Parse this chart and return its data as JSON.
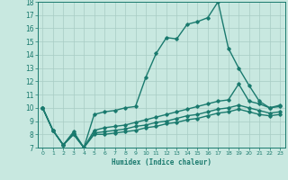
{
  "xlabel": "Humidex (Indice chaleur)",
  "xlim": [
    -0.5,
    23.5
  ],
  "ylim": [
    7,
    18
  ],
  "yticks": [
    7,
    8,
    9,
    10,
    11,
    12,
    13,
    14,
    15,
    16,
    17,
    18
  ],
  "xticks": [
    0,
    1,
    2,
    3,
    4,
    5,
    6,
    7,
    8,
    9,
    10,
    11,
    12,
    13,
    14,
    15,
    16,
    17,
    18,
    19,
    20,
    21,
    22,
    23
  ],
  "background_color": "#c8e8e0",
  "grid_color": "#a8ccc4",
  "line_color": "#1a7a6e",
  "series": [
    {
      "x": [
        0,
        1,
        2,
        3,
        4,
        5,
        6,
        7,
        8,
        9,
        10,
        11,
        12,
        13,
        14,
        15,
        16,
        17,
        18,
        19,
        20,
        21,
        22,
        23
      ],
      "y": [
        10,
        8.3,
        7.2,
        8.2,
        7.0,
        9.5,
        9.7,
        9.8,
        10.0,
        10.1,
        12.3,
        14.1,
        15.3,
        15.2,
        16.3,
        16.5,
        16.8,
        18.0,
        14.5,
        13.0,
        11.7,
        10.5,
        10.0,
        10.2
      ]
    },
    {
      "x": [
        0,
        1,
        2,
        3,
        4,
        5,
        6,
        7,
        8,
        9,
        10,
        11,
        12,
        13,
        14,
        15,
        16,
        17,
        18,
        19,
        20,
        21,
        22,
        23
      ],
      "y": [
        10,
        8.3,
        7.2,
        8.1,
        7.0,
        8.3,
        8.5,
        8.6,
        8.7,
        8.9,
        9.1,
        9.3,
        9.5,
        9.7,
        9.9,
        10.1,
        10.3,
        10.5,
        10.6,
        11.8,
        10.5,
        10.3,
        10.0,
        10.1
      ]
    },
    {
      "x": [
        0,
        1,
        2,
        3,
        4,
        5,
        6,
        7,
        8,
        9,
        10,
        11,
        12,
        13,
        14,
        15,
        16,
        17,
        18,
        19,
        20,
        21,
        22,
        23
      ],
      "y": [
        10,
        8.3,
        7.2,
        8.0,
        7.0,
        8.1,
        8.2,
        8.3,
        8.4,
        8.6,
        8.7,
        8.9,
        9.0,
        9.2,
        9.4,
        9.5,
        9.7,
        9.9,
        10.0,
        10.2,
        10.0,
        9.8,
        9.6,
        9.7
      ]
    },
    {
      "x": [
        0,
        1,
        2,
        3,
        4,
        5,
        6,
        7,
        8,
        9,
        10,
        11,
        12,
        13,
        14,
        15,
        16,
        17,
        18,
        19,
        20,
        21,
        22,
        23
      ],
      "y": [
        10,
        8.3,
        7.2,
        8.0,
        7.0,
        8.0,
        8.0,
        8.1,
        8.2,
        8.3,
        8.5,
        8.6,
        8.8,
        8.9,
        9.1,
        9.2,
        9.4,
        9.6,
        9.7,
        9.9,
        9.7,
        9.5,
        9.4,
        9.5
      ]
    }
  ]
}
